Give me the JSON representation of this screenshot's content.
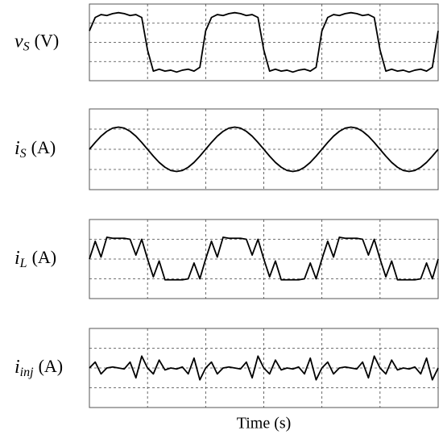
{
  "chart_data": [
    {
      "type": "line",
      "ylabel": {
        "symbol": "v",
        "subscript": "S",
        "unit": "(V)"
      },
      "xlim": [
        0,
        6
      ],
      "ylim": [
        0,
        4
      ],
      "xticks": [
        1,
        2,
        3,
        4,
        5
      ],
      "yticks": [
        1,
        2,
        3
      ],
      "grid": true,
      "color": "#000000",
      "x": [
        0,
        0.1,
        0.2,
        0.3,
        0.4,
        0.5,
        0.6,
        0.7,
        0.8,
        0.9,
        1,
        1.1,
        1.2,
        1.3,
        1.4,
        1.5,
        1.6,
        1.7,
        1.8,
        1.9,
        2,
        2.1,
        2.2,
        2.3,
        2.4,
        2.5,
        2.6,
        2.7,
        2.8,
        2.9,
        3,
        3.1,
        3.2,
        3.3,
        3.4,
        3.5,
        3.6,
        3.7,
        3.8,
        3.9,
        4,
        4.1,
        4.2,
        4.3,
        4.4,
        4.5,
        4.6,
        4.7,
        4.8,
        4.9,
        5,
        5.1,
        5.2,
        5.3,
        5.4,
        5.5,
        5.6,
        5.7,
        5.8,
        5.9,
        6
      ],
      "values": [
        2.6,
        3.3,
        3.45,
        3.4,
        3.5,
        3.55,
        3.5,
        3.4,
        3.45,
        3.3,
        1.6,
        0.5,
        0.6,
        0.5,
        0.55,
        0.45,
        0.55,
        0.6,
        0.5,
        0.7,
        2.6,
        3.3,
        3.45,
        3.4,
        3.5,
        3.55,
        3.5,
        3.4,
        3.45,
        3.3,
        1.6,
        0.5,
        0.6,
        0.5,
        0.55,
        0.45,
        0.55,
        0.6,
        0.5,
        0.7,
        2.6,
        3.3,
        3.45,
        3.4,
        3.5,
        3.55,
        3.5,
        3.4,
        3.45,
        3.3,
        1.6,
        0.5,
        0.6,
        0.5,
        0.55,
        0.45,
        0.55,
        0.6,
        0.5,
        0.7,
        2.6
      ]
    },
    {
      "type": "line",
      "ylabel": {
        "symbol": "i",
        "subscript": "S",
        "unit": "(A)"
      },
      "xlim": [
        0,
        6
      ],
      "ylim": [
        0,
        4
      ],
      "xticks": [
        1,
        2,
        3,
        4,
        5
      ],
      "yticks": [
        1,
        2,
        3
      ],
      "grid": true,
      "color": "#000000",
      "x": [
        0,
        0.1,
        0.2,
        0.3,
        0.4,
        0.5,
        0.6,
        0.7,
        0.8,
        0.9,
        1,
        1.1,
        1.2,
        1.3,
        1.4,
        1.5,
        1.6,
        1.7,
        1.8,
        1.9,
        2,
        2.1,
        2.2,
        2.3,
        2.4,
        2.5,
        2.6,
        2.7,
        2.8,
        2.9,
        3,
        3.1,
        3.2,
        3.3,
        3.4,
        3.5,
        3.6,
        3.7,
        3.8,
        3.9,
        4,
        4.1,
        4.2,
        4.3,
        4.4,
        4.5,
        4.6,
        4.7,
        4.8,
        4.9,
        5,
        5.1,
        5.2,
        5.3,
        5.4,
        5.5,
        5.6,
        5.7,
        5.8,
        5.9,
        6
      ],
      "values": [
        2,
        2.34,
        2.65,
        2.89,
        3.05,
        3.1,
        3.05,
        2.89,
        2.65,
        2.34,
        2,
        1.66,
        1.35,
        1.11,
        0.95,
        0.9,
        0.95,
        1.11,
        1.35,
        1.66,
        2,
        2.34,
        2.65,
        2.89,
        3.05,
        3.1,
        3.05,
        2.89,
        2.65,
        2.34,
        2,
        1.66,
        1.35,
        1.11,
        0.95,
        0.9,
        0.95,
        1.11,
        1.35,
        1.66,
        2,
        2.34,
        2.65,
        2.89,
        3.05,
        3.1,
        3.05,
        2.89,
        2.65,
        2.34,
        2,
        1.66,
        1.35,
        1.11,
        0.95,
        0.9,
        0.95,
        1.11,
        1.35,
        1.66,
        2
      ]
    },
    {
      "type": "line",
      "ylabel": {
        "symbol": "i",
        "subscript": "L",
        "unit": "(A)"
      },
      "xlim": [
        0,
        6
      ],
      "ylim": [
        0,
        4
      ],
      "xticks": [
        1,
        2,
        3,
        4,
        5
      ],
      "yticks": [
        1,
        2,
        3
      ],
      "grid": true,
      "color": "#000000",
      "x": [
        0,
        0.1,
        0.2,
        0.3,
        0.4,
        0.5,
        0.6,
        0.7,
        0.8,
        0.9,
        1,
        1.1,
        1.2,
        1.3,
        1.4,
        1.5,
        1.6,
        1.7,
        1.8,
        1.9,
        2,
        2.1,
        2.2,
        2.3,
        2.4,
        2.5,
        2.6,
        2.7,
        2.8,
        2.9,
        3,
        3.1,
        3.2,
        3.3,
        3.4,
        3.5,
        3.6,
        3.7,
        3.8,
        3.9,
        4,
        4.1,
        4.2,
        4.3,
        4.4,
        4.5,
        4.6,
        4.7,
        4.8,
        4.9,
        5,
        5.1,
        5.2,
        5.3,
        5.4,
        5.5,
        5.6,
        5.7,
        5.8,
        5.9,
        6
      ],
      "values": [
        2,
        2.9,
        2.1,
        3.1,
        3.05,
        3.05,
        3.05,
        3,
        2.2,
        3,
        2,
        1.1,
        1.9,
        0.95,
        0.95,
        0.95,
        0.95,
        1,
        1.8,
        1,
        2,
        2.9,
        2.1,
        3.1,
        3.05,
        3.05,
        3.05,
        3,
        2.2,
        3,
        2,
        1.1,
        1.9,
        0.95,
        0.95,
        0.95,
        0.95,
        1,
        1.8,
        1,
        2,
        2.9,
        2.1,
        3.1,
        3.05,
        3.05,
        3.05,
        3,
        2.2,
        3,
        2,
        1.1,
        1.9,
        0.95,
        0.95,
        0.95,
        0.95,
        1,
        1.8,
        1,
        2
      ]
    },
    {
      "type": "line",
      "ylabel": {
        "symbol": "i",
        "subscript": "inj",
        "unit": "(A)"
      },
      "xlabel": "Time (s)",
      "xlim": [
        0,
        6
      ],
      "ylim": [
        0,
        4
      ],
      "xticks": [
        1,
        2,
        3,
        4,
        5
      ],
      "yticks": [
        1,
        2,
        3
      ],
      "grid": true,
      "color": "#000000",
      "x": [
        0,
        0.1,
        0.2,
        0.3,
        0.4,
        0.5,
        0.6,
        0.7,
        0.8,
        0.9,
        1,
        1.1,
        1.2,
        1.3,
        1.4,
        1.5,
        1.6,
        1.7,
        1.8,
        1.9,
        2,
        2.1,
        2.2,
        2.3,
        2.4,
        2.5,
        2.6,
        2.7,
        2.8,
        2.9,
        3,
        3.1,
        3.2,
        3.3,
        3.4,
        3.5,
        3.6,
        3.7,
        3.8,
        3.9,
        4,
        4.1,
        4.2,
        4.3,
        4.4,
        4.5,
        4.6,
        4.7,
        4.8,
        4.9,
        5,
        5.1,
        5.2,
        5.3,
        5.4,
        5.5,
        5.6,
        5.7,
        5.8,
        5.9,
        6
      ],
      "values": [
        2,
        2.3,
        1.7,
        2,
        2.05,
        2,
        1.95,
        2.3,
        1.5,
        2.6,
        2,
        1.7,
        2.4,
        1.9,
        2,
        1.95,
        2.05,
        1.7,
        2.5,
        1.4,
        2,
        2.3,
        1.7,
        2,
        2.05,
        2,
        1.95,
        2.3,
        1.5,
        2.6,
        2,
        1.7,
        2.4,
        1.9,
        2,
        1.95,
        2.05,
        1.7,
        2.5,
        1.4,
        2,
        2.3,
        1.7,
        2,
        2.05,
        2,
        1.95,
        2.3,
        1.5,
        2.6,
        2,
        1.7,
        2.4,
        1.9,
        2,
        1.95,
        2.05,
        1.7,
        2.5,
        1.4,
        2
      ]
    }
  ]
}
